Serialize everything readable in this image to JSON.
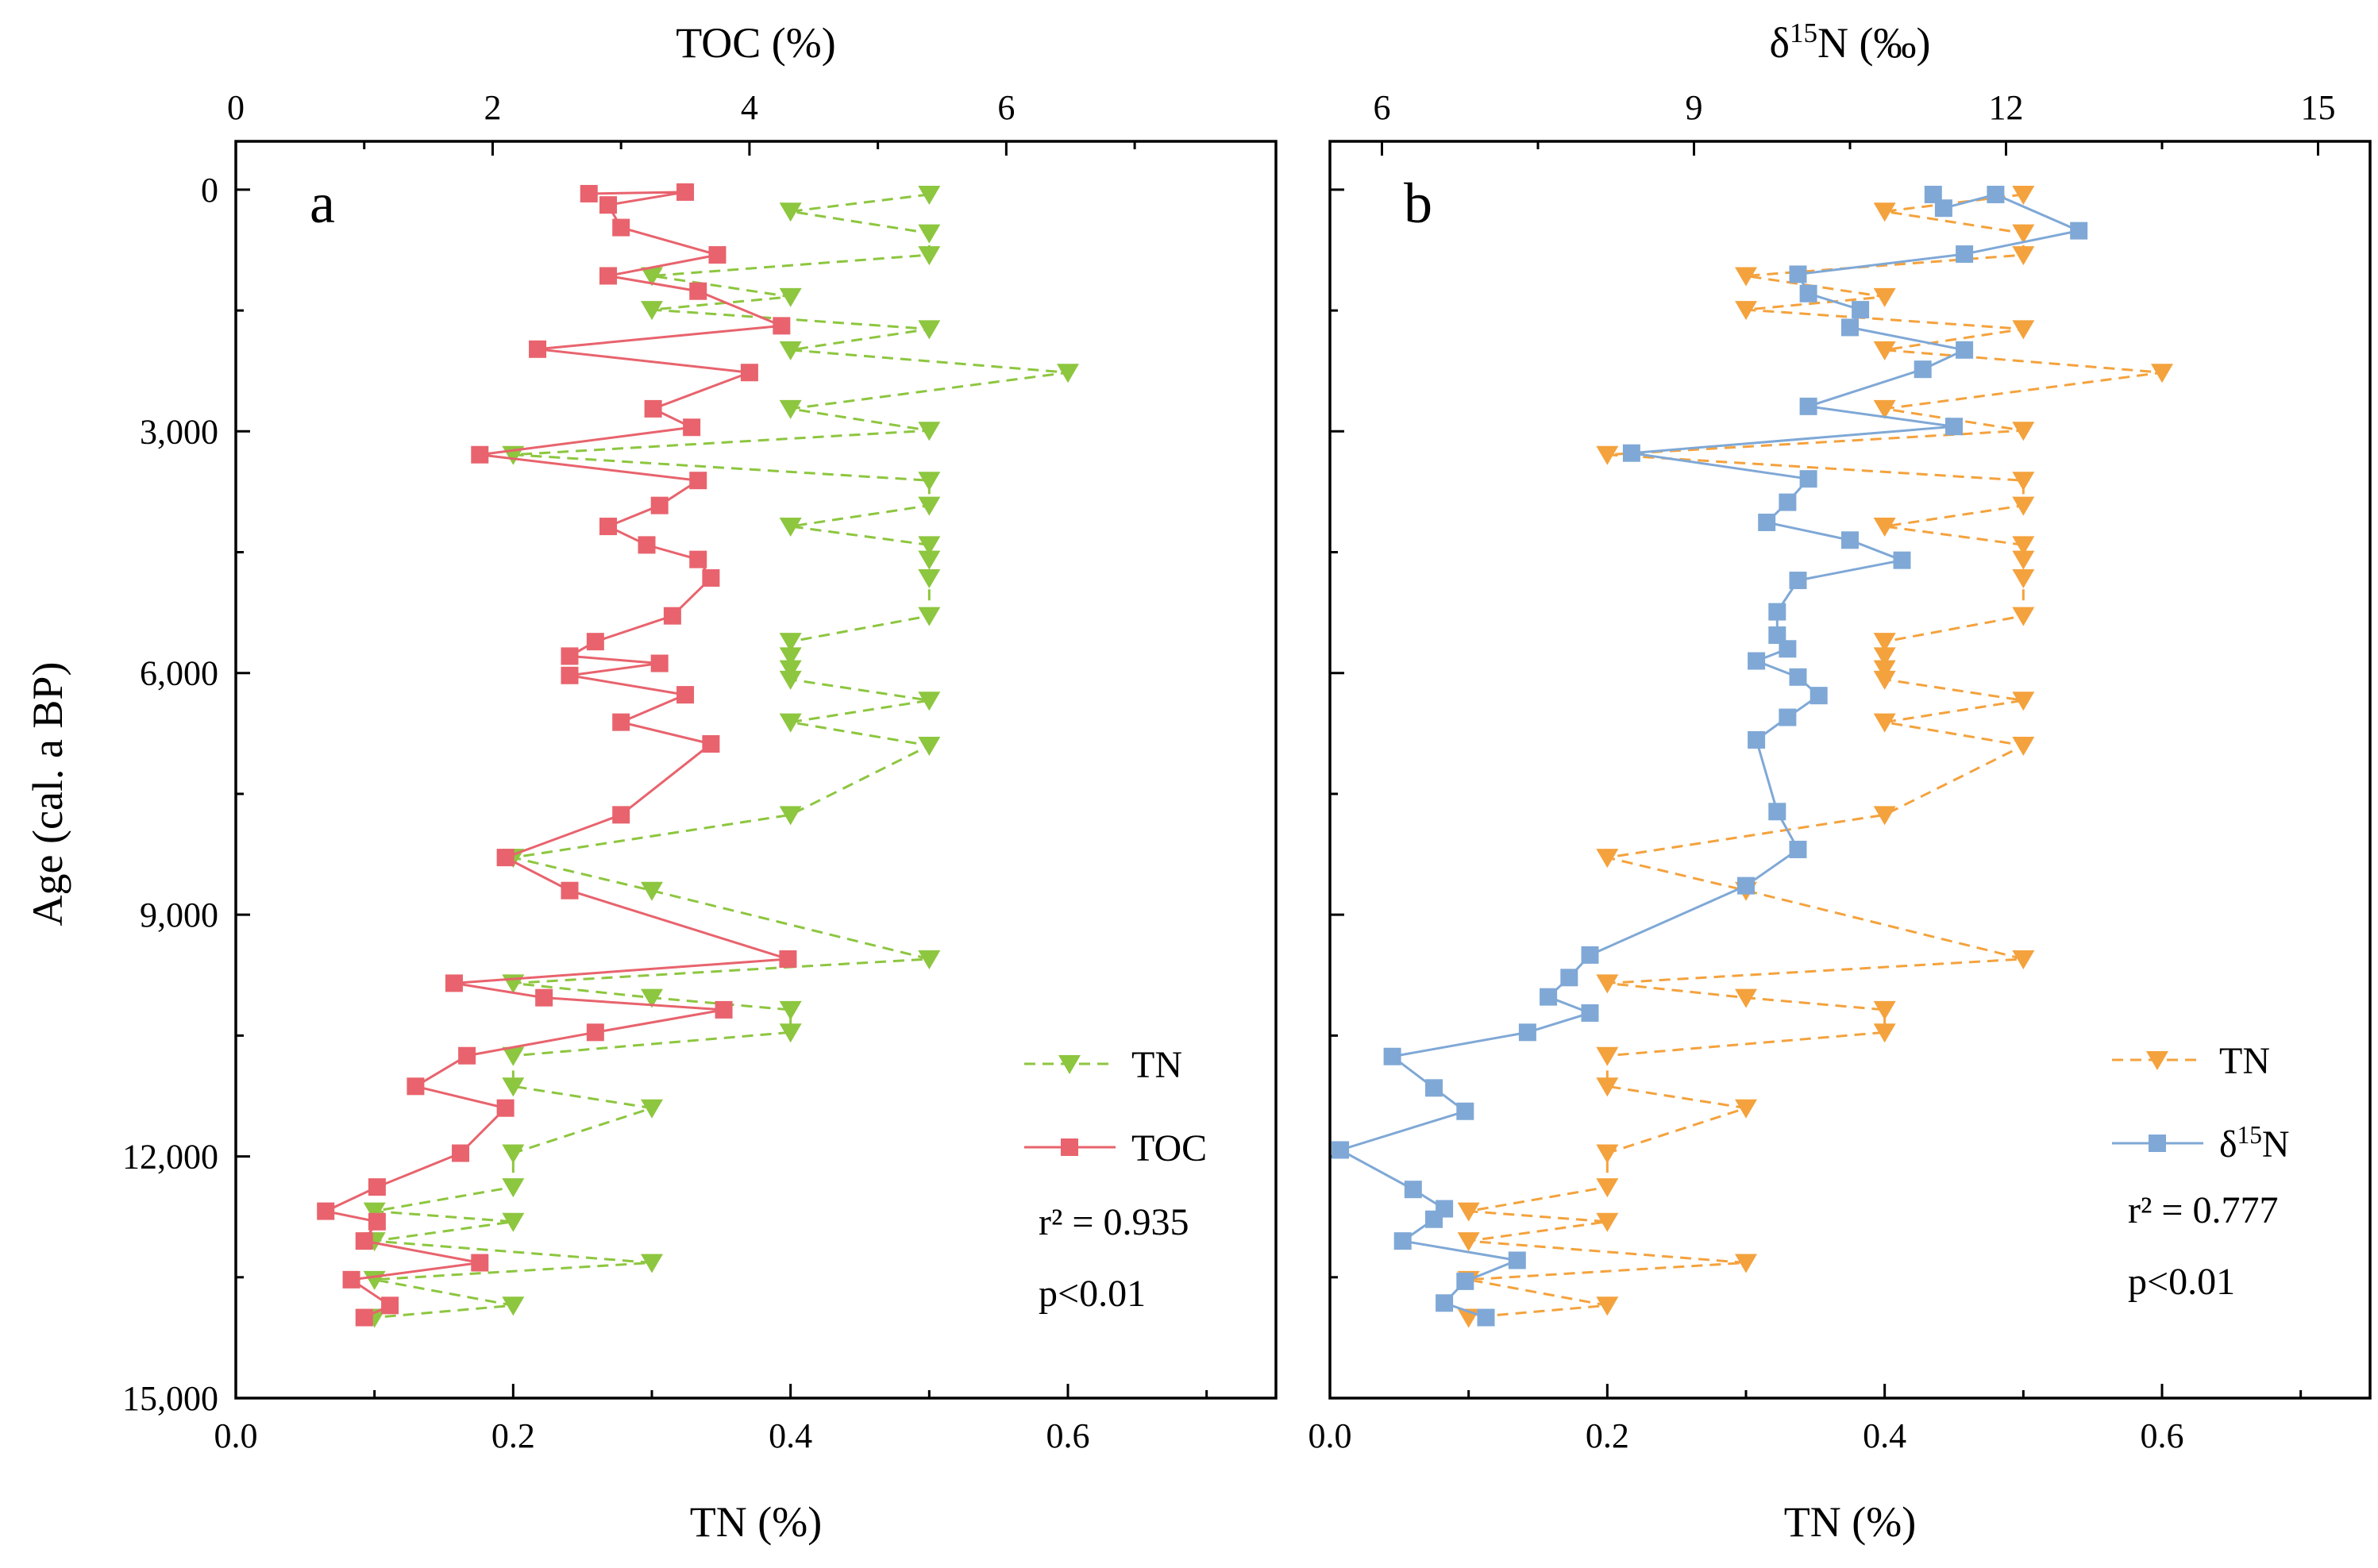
{
  "figure": {
    "ylabel": "Age (cal. a BP)",
    "ytick_labels": [
      "0",
      "3,000",
      "6,000",
      "9,000",
      "12,000",
      "15,000"
    ]
  },
  "chart_data": [
    {
      "panel": "a",
      "type": "line",
      "xlabel": "TN (%)",
      "x2label": "TOC (%)",
      "ylabel": "Age (cal. a BP)",
      "xlim": [
        0.0,
        0.75
      ],
      "x2lim": [
        0,
        8.1
      ],
      "ylim": [
        15000,
        -600
      ],
      "y_inverted": true,
      "xticks": [
        0.0,
        0.2,
        0.4,
        0.6
      ],
      "xtick_labels": [
        "0.0",
        "0.2",
        "0.4",
        "0.6"
      ],
      "x2ticks": [
        0,
        2,
        4,
        6
      ],
      "x2tick_labels": [
        "0",
        "2",
        "4",
        "6"
      ],
      "yticks": [
        0,
        3000,
        6000,
        9000,
        12000,
        15000
      ],
      "grid": false,
      "legend_position": "bottom-right",
      "annotations": [
        "r² = 0.935",
        "p<0.01"
      ],
      "series": [
        {
          "name": "TN",
          "color": "#8dc63f",
          "marker": "triangle-down",
          "line": "dashed",
          "axis": "bottom",
          "points": [
            [
              0.5,
              60
            ],
            [
              0.4,
              270
            ],
            [
              0.5,
              540
            ],
            [
              0.5,
              810
            ],
            [
              0.3,
              1070
            ],
            [
              0.4,
              1330
            ],
            [
              0.3,
              1490
            ],
            [
              0.5,
              1730
            ],
            [
              0.4,
              1990
            ],
            [
              0.6,
              2270
            ],
            [
              0.4,
              2720
            ],
            [
              0.5,
              2990
            ],
            [
              0.2,
              3290
            ],
            [
              0.5,
              3610
            ],
            [
              0.5,
              3920
            ],
            [
              0.4,
              4180
            ],
            [
              0.5,
              4410
            ],
            [
              0.5,
              4590
            ],
            [
              0.5,
              4820
            ],
            [
              0.5,
              5290
            ],
            [
              0.4,
              5610
            ],
            [
              0.4,
              5790
            ],
            [
              0.4,
              5950
            ],
            [
              0.4,
              6080
            ],
            [
              0.5,
              6340
            ],
            [
              0.4,
              6610
            ],
            [
              0.5,
              6900
            ],
            [
              0.4,
              7760
            ],
            [
              0.2,
              8290
            ],
            [
              0.3,
              8700
            ],
            [
              0.5,
              9550
            ],
            [
              0.2,
              9850
            ],
            [
              0.3,
              10030
            ],
            [
              0.4,
              10180
            ],
            [
              0.4,
              10460
            ],
            [
              0.2,
              10750
            ],
            [
              0.2,
              11130
            ],
            [
              0.3,
              11400
            ],
            [
              0.2,
              11960
            ],
            [
              0.2,
              12380
            ],
            [
              0.1,
              12680
            ],
            [
              0.2,
              12810
            ],
            [
              0.1,
              13050
            ],
            [
              0.3,
              13320
            ],
            [
              0.1,
              13530
            ],
            [
              0.2,
              13850
            ],
            [
              0.1,
              14000
            ]
          ]
        },
        {
          "name": "TOC",
          "color": "#e8636d",
          "marker": "square",
          "line": "solid",
          "axis": "top",
          "points": [
            [
              2.75,
              50
            ],
            [
              3.5,
              30
            ],
            [
              2.9,
              190
            ],
            [
              3.0,
              470
            ],
            [
              3.75,
              810
            ],
            [
              2.9,
              1070
            ],
            [
              3.6,
              1260
            ],
            [
              4.25,
              1690
            ],
            [
              2.35,
              1980
            ],
            [
              4.0,
              2270
            ],
            [
              3.25,
              2720
            ],
            [
              3.55,
              2950
            ],
            [
              1.9,
              3290
            ],
            [
              3.6,
              3610
            ],
            [
              3.3,
              3920
            ],
            [
              2.9,
              4180
            ],
            [
              3.2,
              4410
            ],
            [
              3.6,
              4590
            ],
            [
              3.7,
              4820
            ],
            [
              3.4,
              5290
            ],
            [
              2.8,
              5610
            ],
            [
              2.6,
              5790
            ],
            [
              3.3,
              5880
            ],
            [
              2.6,
              6030
            ],
            [
              3.5,
              6270
            ],
            [
              3.0,
              6610
            ],
            [
              3.7,
              6880
            ],
            [
              3.0,
              7760
            ],
            [
              2.1,
              8290
            ],
            [
              2.6,
              8700
            ],
            [
              4.3,
              9550
            ],
            [
              1.7,
              9850
            ],
            [
              2.4,
              10030
            ],
            [
              3.8,
              10180
            ],
            [
              2.8,
              10460
            ],
            [
              1.8,
              10750
            ],
            [
              1.4,
              11130
            ],
            [
              2.1,
              11400
            ],
            [
              1.75,
              11960
            ],
            [
              1.1,
              12380
            ],
            [
              0.7,
              12680
            ],
            [
              1.1,
              12810
            ],
            [
              1.0,
              13050
            ],
            [
              1.9,
              13320
            ],
            [
              0.9,
              13530
            ],
            [
              1.2,
              13850
            ],
            [
              1.0,
              14000
            ]
          ]
        }
      ]
    },
    {
      "panel": "b",
      "type": "line",
      "xlabel": "TN (%)",
      "x2label": "δ15N (‰)",
      "ylabel": "Age (cal. a BP)",
      "xlim": [
        0.0,
        0.75
      ],
      "x2lim": [
        5.5,
        15.5
      ],
      "ylim": [
        15000,
        -600
      ],
      "y_inverted": true,
      "xticks": [
        0.0,
        0.2,
        0.4,
        0.6
      ],
      "xtick_labels": [
        "0.0",
        "0.2",
        "0.4",
        "0.6"
      ],
      "x2ticks": [
        6,
        9,
        12,
        15
      ],
      "x2tick_labels": [
        "6",
        "9",
        "12",
        "15"
      ],
      "yticks": [
        0,
        3000,
        6000,
        9000,
        12000,
        15000
      ],
      "grid": false,
      "legend_position": "bottom-right",
      "annotations": [
        "r² = 0.777",
        "p<0.01"
      ],
      "series": [
        {
          "name": "TN",
          "color": "#f4a23d",
          "marker": "triangle-down",
          "line": "dashed",
          "axis": "bottom",
          "points": [
            [
              0.5,
              60
            ],
            [
              0.4,
              270
            ],
            [
              0.5,
              540
            ],
            [
              0.5,
              810
            ],
            [
              0.3,
              1070
            ],
            [
              0.4,
              1330
            ],
            [
              0.3,
              1490
            ],
            [
              0.5,
              1730
            ],
            [
              0.4,
              1990
            ],
            [
              0.6,
              2270
            ],
            [
              0.4,
              2720
            ],
            [
              0.5,
              2990
            ],
            [
              0.2,
              3290
            ],
            [
              0.5,
              3610
            ],
            [
              0.5,
              3920
            ],
            [
              0.4,
              4180
            ],
            [
              0.5,
              4410
            ],
            [
              0.5,
              4590
            ],
            [
              0.5,
              4820
            ],
            [
              0.5,
              5290
            ],
            [
              0.4,
              5610
            ],
            [
              0.4,
              5790
            ],
            [
              0.4,
              5950
            ],
            [
              0.4,
              6080
            ],
            [
              0.5,
              6340
            ],
            [
              0.4,
              6610
            ],
            [
              0.5,
              6900
            ],
            [
              0.4,
              7760
            ],
            [
              0.2,
              8290
            ],
            [
              0.3,
              8700
            ],
            [
              0.5,
              9550
            ],
            [
              0.2,
              9850
            ],
            [
              0.3,
              10030
            ],
            [
              0.4,
              10180
            ],
            [
              0.4,
              10460
            ],
            [
              0.2,
              10750
            ],
            [
              0.2,
              11130
            ],
            [
              0.3,
              11400
            ],
            [
              0.2,
              11960
            ],
            [
              0.2,
              12380
            ],
            [
              0.1,
              12680
            ],
            [
              0.2,
              12810
            ],
            [
              0.1,
              13050
            ],
            [
              0.3,
              13320
            ],
            [
              0.1,
              13530
            ],
            [
              0.2,
              13850
            ],
            [
              0.1,
              14000
            ]
          ]
        },
        {
          "name": "δ15N",
          "color": "#7fa8d6",
          "marker": "square",
          "line": "solid",
          "axis": "top",
          "points": [
            [
              11.3,
              60
            ],
            [
              11.4,
              230
            ],
            [
              11.9,
              60
            ],
            [
              12.7,
              510
            ],
            [
              11.6,
              800
            ],
            [
              10.0,
              1050
            ],
            [
              10.1,
              1290
            ],
            [
              10.6,
              1490
            ],
            [
              10.5,
              1710
            ],
            [
              11.6,
              1990
            ],
            [
              11.2,
              2230
            ],
            [
              10.1,
              2690
            ],
            [
              11.5,
              2940
            ],
            [
              8.4,
              3270
            ],
            [
              10.1,
              3590
            ],
            [
              9.9,
              3880
            ],
            [
              9.7,
              4130
            ],
            [
              10.5,
              4350
            ],
            [
              11.0,
              4600
            ],
            [
              10.0,
              4850
            ],
            [
              9.8,
              5240
            ],
            [
              9.8,
              5530
            ],
            [
              9.9,
              5700
            ],
            [
              9.6,
              5850
            ],
            [
              10.0,
              6050
            ],
            [
              10.2,
              6280
            ],
            [
              9.9,
              6550
            ],
            [
              9.6,
              6830
            ],
            [
              9.8,
              7720
            ],
            [
              10.0,
              8190
            ],
            [
              9.5,
              8640
            ],
            [
              8.0,
              9500
            ],
            [
              7.8,
              9780
            ],
            [
              7.6,
              10020
            ],
            [
              8.0,
              10220
            ],
            [
              7.4,
              10460
            ],
            [
              6.1,
              10760
            ],
            [
              6.5,
              11150
            ],
            [
              6.8,
              11440
            ],
            [
              5.6,
              11920
            ],
            [
              6.3,
              12410
            ],
            [
              6.6,
              12650
            ],
            [
              6.5,
              12780
            ],
            [
              6.2,
              13050
            ],
            [
              7.3,
              13290
            ],
            [
              6.8,
              13550
            ],
            [
              6.6,
              13820
            ],
            [
              7.0,
              14000
            ]
          ]
        }
      ]
    }
  ]
}
